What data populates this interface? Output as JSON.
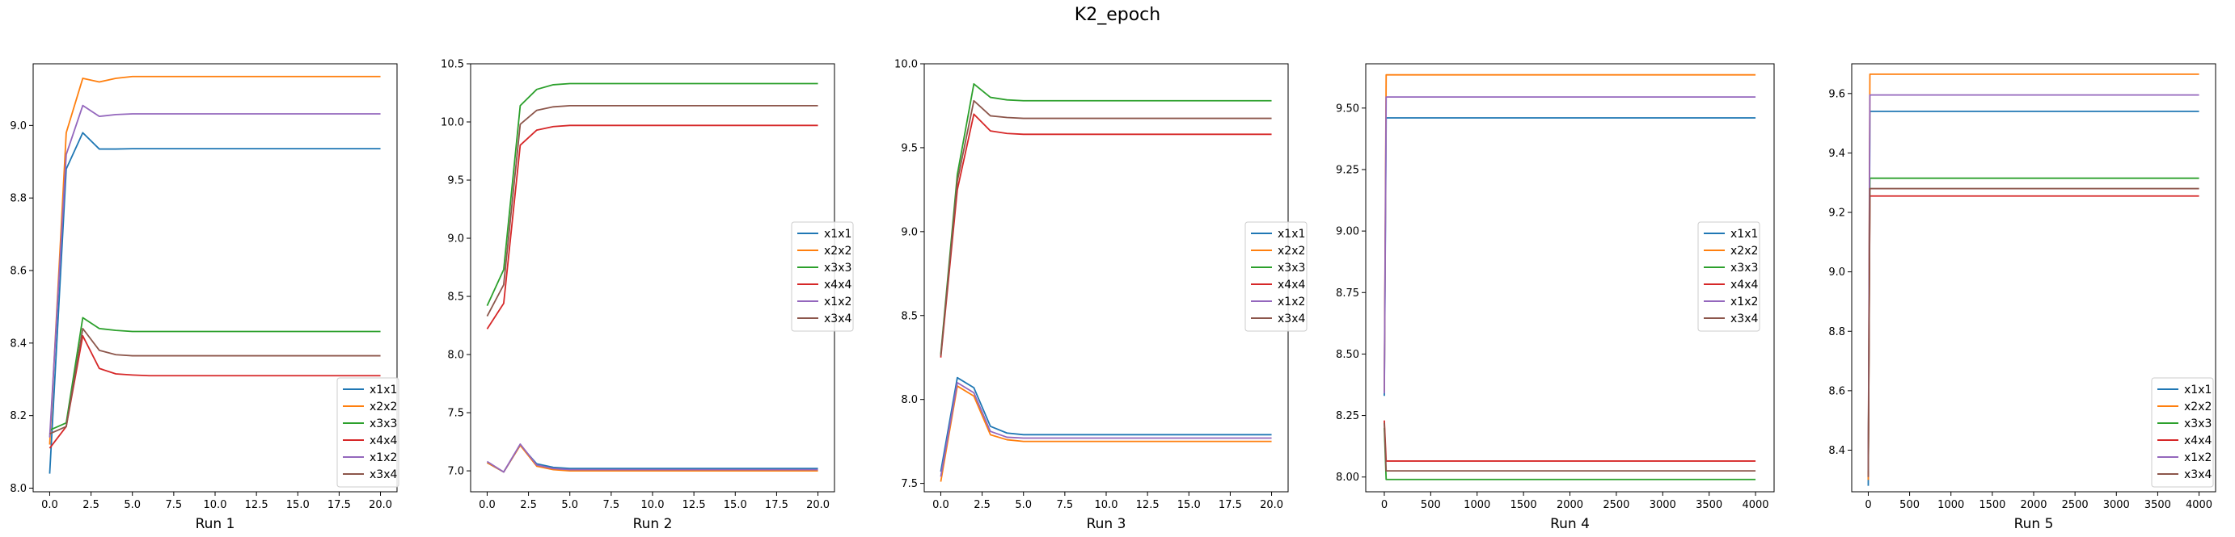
{
  "figure": {
    "title": "K2_epoch"
  },
  "colors": {
    "x1x1": "#1f77b4",
    "x2x2": "#ff7f0e",
    "x3x3": "#2ca02c",
    "x4x4": "#d62728",
    "x1x2": "#9467bd",
    "x3x4": "#8c564b"
  },
  "chart_data": [
    {
      "type": "line",
      "xlabel": "Run 1",
      "xlim": [
        -1,
        21
      ],
      "ylim": [
        7.99,
        9.17
      ],
      "xticks": [
        0,
        2.5,
        5,
        7.5,
        10,
        12.5,
        15,
        17.5,
        20
      ],
      "xtick_labels": [
        "0.0",
        "2.5",
        "5.0",
        "7.5",
        "10.0",
        "12.5",
        "15.0",
        "17.5",
        "20.0"
      ],
      "yticks": [
        8.0,
        8.2,
        8.4,
        8.6,
        8.8,
        9.0
      ],
      "ytick_labels": [
        "8.0",
        "8.2",
        "8.4",
        "8.6",
        "8.8",
        "9.0"
      ],
      "legend": "lower right",
      "series": [
        {
          "name": "x1x1",
          "x": [
            0,
            1,
            2,
            3,
            4,
            5,
            6,
            20
          ],
          "y": [
            8.04,
            8.88,
            8.98,
            8.935,
            8.935,
            8.936,
            8.936,
            8.936
          ]
        },
        {
          "name": "x2x2",
          "x": [
            0,
            1,
            2,
            3,
            4,
            5,
            6,
            20
          ],
          "y": [
            8.12,
            8.98,
            9.13,
            9.12,
            9.13,
            9.135,
            9.135,
            9.135
          ]
        },
        {
          "name": "x3x3",
          "x": [
            0,
            1,
            2,
            3,
            4,
            5,
            6,
            20
          ],
          "y": [
            8.16,
            8.18,
            8.47,
            8.44,
            8.435,
            8.432,
            8.432,
            8.432
          ]
        },
        {
          "name": "x4x4",
          "x": [
            0,
            1,
            2,
            3,
            4,
            5,
            6,
            20
          ],
          "y": [
            8.11,
            8.17,
            8.42,
            8.33,
            8.315,
            8.312,
            8.31,
            8.31
          ]
        },
        {
          "name": "x1x2",
          "x": [
            0,
            1,
            2,
            3,
            4,
            5,
            6,
            20
          ],
          "y": [
            8.14,
            8.92,
            9.055,
            9.025,
            9.03,
            9.032,
            9.032,
            9.032
          ]
        },
        {
          "name": "x3x4",
          "x": [
            0,
            1,
            2,
            3,
            4,
            5,
            6,
            20
          ],
          "y": [
            8.15,
            8.17,
            8.44,
            8.38,
            8.368,
            8.365,
            8.365,
            8.365
          ]
        }
      ]
    },
    {
      "type": "line",
      "xlabel": "Run 2",
      "xlim": [
        -1,
        21
      ],
      "ylim": [
        6.82,
        10.5
      ],
      "xticks": [
        0,
        2.5,
        5,
        7.5,
        10,
        12.5,
        15,
        17.5,
        20
      ],
      "xtick_labels": [
        "0.0",
        "2.5",
        "5.0",
        "7.5",
        "10.0",
        "12.5",
        "15.0",
        "17.5",
        "20.0"
      ],
      "yticks": [
        7.0,
        7.5,
        8.0,
        8.5,
        9.0,
        9.5,
        10.0,
        10.5
      ],
      "ytick_labels": [
        "7.0",
        "7.5",
        "8.0",
        "8.5",
        "9.0",
        "9.5",
        "10.0",
        "10.5"
      ],
      "legend": "center right",
      "series": [
        {
          "name": "x1x1",
          "x": [
            0,
            1,
            2,
            3,
            4,
            5,
            6,
            20
          ],
          "y": [
            7.07,
            6.99,
            7.22,
            7.06,
            7.03,
            7.02,
            7.02,
            7.02
          ]
        },
        {
          "name": "x2x2",
          "x": [
            0,
            1,
            2,
            3,
            4,
            5,
            6,
            20
          ],
          "y": [
            7.07,
            6.99,
            7.22,
            7.04,
            7.01,
            7.0,
            7.0,
            7.0
          ]
        },
        {
          "name": "x3x3",
          "x": [
            0,
            1,
            2,
            3,
            4,
            5,
            6,
            20
          ],
          "y": [
            8.42,
            8.73,
            10.14,
            10.28,
            10.32,
            10.33,
            10.33,
            10.33
          ]
        },
        {
          "name": "x4x4",
          "x": [
            0,
            1,
            2,
            3,
            4,
            5,
            6,
            20
          ],
          "y": [
            8.22,
            8.44,
            9.8,
            9.93,
            9.96,
            9.97,
            9.97,
            9.97
          ]
        },
        {
          "name": "x1x2",
          "x": [
            0,
            1,
            2,
            3,
            4,
            5,
            6,
            20
          ],
          "y": [
            7.08,
            6.99,
            7.23,
            7.05,
            7.02,
            7.01,
            7.01,
            7.01
          ]
        },
        {
          "name": "x3x4",
          "x": [
            0,
            1,
            2,
            3,
            4,
            5,
            6,
            20
          ],
          "y": [
            8.33,
            8.6,
            9.98,
            10.1,
            10.13,
            10.14,
            10.14,
            10.14
          ]
        }
      ]
    },
    {
      "type": "line",
      "xlabel": "Run 3",
      "xlim": [
        -1,
        21
      ],
      "ylim": [
        7.45,
        10.0
      ],
      "xticks": [
        0,
        2.5,
        5,
        7.5,
        10,
        12.5,
        15,
        17.5,
        20
      ],
      "xtick_labels": [
        "0.0",
        "2.5",
        "5.0",
        "7.5",
        "10.0",
        "12.5",
        "15.0",
        "17.5",
        "20.0"
      ],
      "yticks": [
        7.5,
        8.0,
        8.5,
        9.0,
        9.5,
        10.0
      ],
      "ytick_labels": [
        "7.5",
        "8.0",
        "8.5",
        "9.0",
        "9.5",
        "10.0"
      ],
      "legend": "center right",
      "series": [
        {
          "name": "x1x1",
          "x": [
            0,
            1,
            2,
            3,
            4,
            5,
            6,
            20
          ],
          "y": [
            7.57,
            8.13,
            8.07,
            7.84,
            7.8,
            7.79,
            7.79,
            7.79
          ]
        },
        {
          "name": "x2x2",
          "x": [
            0,
            1,
            2,
            3,
            4,
            5,
            6,
            20
          ],
          "y": [
            7.51,
            8.08,
            8.02,
            7.79,
            7.76,
            7.75,
            7.75,
            7.75
          ]
        },
        {
          "name": "x3x3",
          "x": [
            0,
            1,
            2,
            3,
            4,
            5,
            6,
            20
          ],
          "y": [
            8.27,
            9.34,
            9.88,
            9.8,
            9.785,
            9.78,
            9.78,
            9.78
          ]
        },
        {
          "name": "x4x4",
          "x": [
            0,
            1,
            2,
            3,
            4,
            5,
            6,
            20
          ],
          "y": [
            8.25,
            9.25,
            9.7,
            9.6,
            9.585,
            9.58,
            9.58,
            9.58
          ]
        },
        {
          "name": "x1x2",
          "x": [
            0,
            1,
            2,
            3,
            4,
            5,
            6,
            20
          ],
          "y": [
            7.54,
            8.1,
            8.04,
            7.81,
            7.775,
            7.77,
            7.77,
            7.77
          ]
        },
        {
          "name": "x3x4",
          "x": [
            0,
            1,
            2,
            3,
            4,
            5,
            6,
            20
          ],
          "y": [
            8.26,
            9.3,
            9.78,
            9.69,
            9.68,
            9.675,
            9.675,
            9.675
          ]
        }
      ]
    },
    {
      "type": "line",
      "xlabel": "Run 4",
      "xlim": [
        -200,
        4200
      ],
      "ylim": [
        7.94,
        9.68
      ],
      "xticks": [
        0,
        500,
        1000,
        1500,
        2000,
        2500,
        3000,
        3500,
        4000
      ],
      "xtick_labels": [
        "0",
        "500",
        "1000",
        "1500",
        "2000",
        "2500",
        "3000",
        "3500",
        "4000"
      ],
      "yticks": [
        8.0,
        8.25,
        8.5,
        8.75,
        9.0,
        9.25,
        9.5
      ],
      "ytick_labels": [
        "8.00",
        "8.25",
        "8.50",
        "8.75",
        "9.00",
        "9.25",
        "9.50"
      ],
      "legend": "center right",
      "series": [
        {
          "name": "x1x1",
          "x": [
            0,
            20,
            4000
          ],
          "y": [
            8.33,
            9.46,
            9.46
          ]
        },
        {
          "name": "x2x2",
          "x": [
            0,
            20,
            4000
          ],
          "y": [
            8.35,
            9.635,
            9.635
          ]
        },
        {
          "name": "x3x3",
          "x": [
            0,
            20,
            4000
          ],
          "y": [
            8.2,
            7.99,
            7.99
          ]
        },
        {
          "name": "x4x4",
          "x": [
            0,
            20,
            4000
          ],
          "y": [
            8.23,
            8.065,
            8.065
          ]
        },
        {
          "name": "x1x2",
          "x": [
            0,
            20,
            4000
          ],
          "y": [
            8.34,
            9.545,
            9.545
          ]
        },
        {
          "name": "x3x4",
          "x": [
            0,
            20,
            4000
          ],
          "y": [
            8.22,
            8.025,
            8.025
          ]
        }
      ]
    },
    {
      "type": "line",
      "xlabel": "Run 5",
      "xlim": [
        -200,
        4200
      ],
      "ylim": [
        8.26,
        9.7
      ],
      "xticks": [
        0,
        500,
        1000,
        1500,
        2000,
        2500,
        3000,
        3500,
        4000
      ],
      "xtick_labels": [
        "0",
        "500",
        "1000",
        "1500",
        "2000",
        "2500",
        "3000",
        "3500",
        "4000"
      ],
      "yticks": [
        8.4,
        8.6,
        8.8,
        9.0,
        9.2,
        9.4,
        9.6
      ],
      "ytick_labels": [
        "8.4",
        "8.6",
        "8.8",
        "9.0",
        "9.2",
        "9.4",
        "9.6"
      ],
      "legend": "lower right",
      "series": [
        {
          "name": "x1x1",
          "x": [
            0,
            20,
            4000
          ],
          "y": [
            8.28,
            9.54,
            9.54
          ]
        },
        {
          "name": "x2x2",
          "x": [
            0,
            20,
            4000
          ],
          "y": [
            8.3,
            9.665,
            9.665
          ]
        },
        {
          "name": "x3x3",
          "x": [
            0,
            20,
            4000
          ],
          "y": [
            8.32,
            9.315,
            9.315
          ]
        },
        {
          "name": "x4x4",
          "x": [
            0,
            20,
            4000
          ],
          "y": [
            8.31,
            9.255,
            9.255
          ]
        },
        {
          "name": "x1x2",
          "x": [
            0,
            20,
            4000
          ],
          "y": [
            8.33,
            9.595,
            9.595
          ]
        },
        {
          "name": "x3x4",
          "x": [
            0,
            20,
            4000
          ],
          "y": [
            8.31,
            9.28,
            9.28
          ]
        }
      ]
    }
  ]
}
